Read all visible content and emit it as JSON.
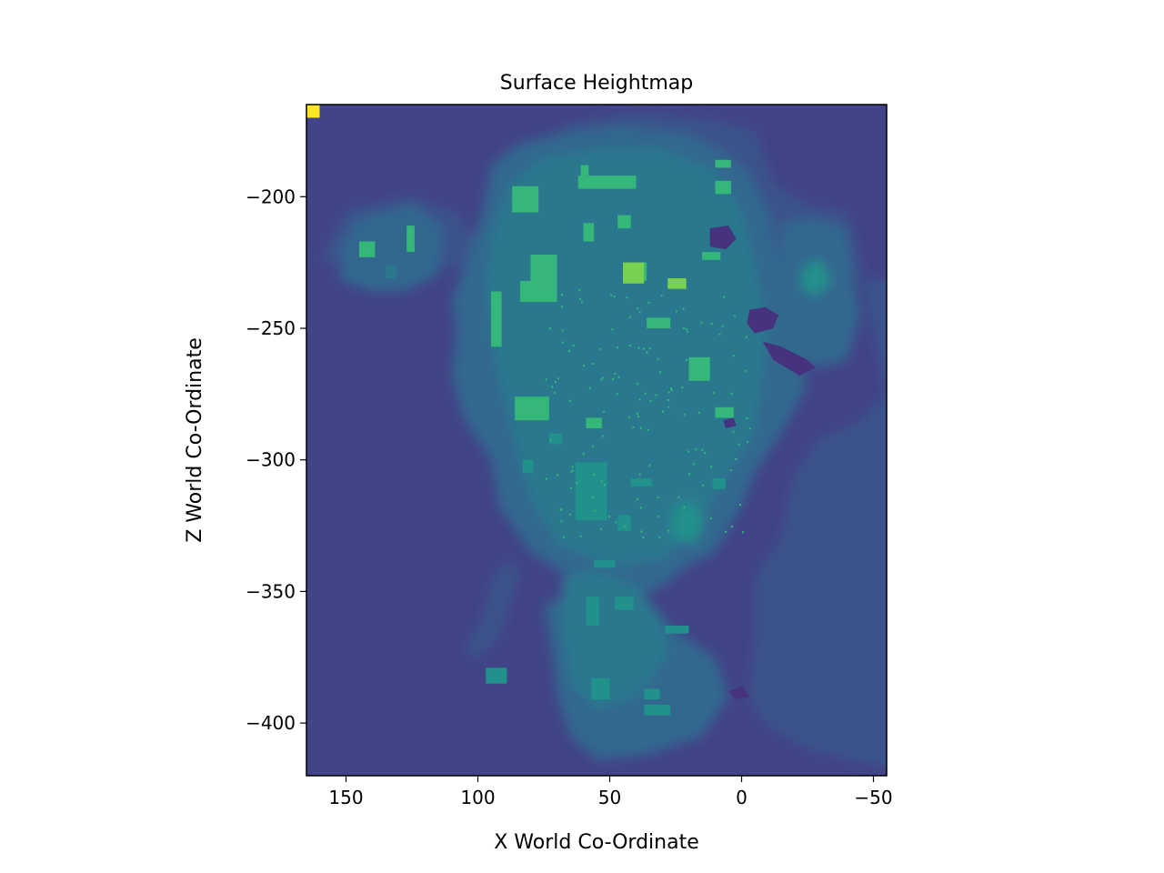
{
  "chart_data": {
    "type": "heatmap",
    "title": "Surface Heightmap",
    "xlabel": "X World Co-Ordinate",
    "ylabel": "Z World Co-Ordinate",
    "xlim": [
      165,
      -55
    ],
    "ylim": [
      -420,
      -165
    ],
    "xticks": [
      {
        "value": 150,
        "label": "150"
      },
      {
        "value": 100,
        "label": "100"
      },
      {
        "value": 50,
        "label": "50"
      },
      {
        "value": 0,
        "label": "0"
      },
      {
        "value": -50,
        "label": "−50"
      }
    ],
    "yticks": [
      {
        "value": -200,
        "label": "−200"
      },
      {
        "value": -250,
        "label": "−250"
      },
      {
        "value": -300,
        "label": "−300"
      },
      {
        "value": -350,
        "label": "−350"
      },
      {
        "value": -400,
        "label": "−400"
      }
    ],
    "colormap": "viridis",
    "colors": {
      "background": "#414487",
      "low": "#46327e",
      "mid_low": "#3b528b",
      "mid": "#31688e",
      "mid_high": "#2a788e",
      "high": "#21918c",
      "higher": "#35b779",
      "peak": "#7ad151",
      "max": "#fde725"
    },
    "regions": [
      {
        "level": "mid_low",
        "points": [
          [
            160,
            -225
          ],
          [
            150,
            -205
          ],
          [
            125,
            -200
          ],
          [
            108,
            -206
          ],
          [
            102,
            -216
          ],
          [
            98,
            -212
          ],
          [
            92,
            -190
          ],
          [
            80,
            -180
          ],
          [
            62,
            -172
          ],
          [
            40,
            -168
          ],
          [
            10,
            -171
          ],
          [
            -5,
            -175
          ],
          [
            -12,
            -195
          ],
          [
            -25,
            -203
          ],
          [
            -40,
            -206
          ],
          [
            -45,
            -226
          ],
          [
            -50,
            -252
          ],
          [
            -55,
            -275
          ],
          [
            -45,
            -285
          ],
          [
            -30,
            -292
          ],
          [
            -20,
            -305
          ],
          [
            -15,
            -330
          ],
          [
            -5,
            -345
          ],
          [
            -5,
            -370
          ],
          [
            -3,
            -390
          ],
          [
            -8,
            -400
          ],
          [
            -25,
            -410
          ],
          [
            -45,
            -415
          ],
          [
            -65,
            -418
          ],
          [
            -85,
            -405
          ],
          [
            -92,
            -390
          ],
          [
            -95,
            -370
          ],
          [
            -92,
            -345
          ],
          [
            -90,
            -330
          ],
          [
            -80,
            -318
          ],
          [
            -67,
            -312
          ],
          [
            -70,
            -295
          ],
          [
            -78,
            -282
          ],
          [
            -85,
            -265
          ],
          [
            -100,
            -248
          ],
          [
            -110,
            -235
          ],
          [
            -120,
            -228
          ],
          [
            -140,
            -233
          ],
          [
            -155,
            -235
          ]
        ]
      },
      {
        "level": "mid_low",
        "points": [
          [
            101,
            -376
          ],
          [
            92,
            -368
          ],
          [
            88,
            -355
          ],
          [
            84,
            -342
          ],
          [
            90,
            -338
          ],
          [
            95,
            -346
          ],
          [
            98,
            -360
          ],
          [
            105,
            -372
          ]
        ]
      },
      {
        "level": "mid",
        "points": [
          [
            145,
            -208
          ],
          [
            125,
            -203
          ],
          [
            113,
            -212
          ],
          [
            115,
            -230
          ],
          [
            128,
            -236
          ],
          [
            140,
            -236
          ],
          [
            152,
            -232
          ],
          [
            152,
            -218
          ]
        ]
      },
      {
        "level": "mid",
        "points": [
          [
            102,
            -216
          ],
          [
            98,
            -205
          ],
          [
            95,
            -188
          ],
          [
            85,
            -180
          ],
          [
            65,
            -175
          ],
          [
            45,
            -173
          ],
          [
            20,
            -176
          ],
          [
            10,
            -181
          ],
          [
            -2,
            -190
          ],
          [
            -10,
            -205
          ],
          [
            -15,
            -225
          ],
          [
            -20,
            -255
          ],
          [
            -25,
            -272
          ],
          [
            -15,
            -290
          ],
          [
            -5,
            -305
          ],
          [
            0,
            -318
          ],
          [
            10,
            -335
          ],
          [
            20,
            -340
          ],
          [
            30,
            -348
          ],
          [
            40,
            -353
          ],
          [
            55,
            -345
          ],
          [
            65,
            -345
          ],
          [
            80,
            -335
          ],
          [
            92,
            -318
          ],
          [
            95,
            -300
          ],
          [
            105,
            -285
          ],
          [
            110,
            -268
          ],
          [
            108,
            -250
          ],
          [
            110,
            -240
          ],
          [
            105,
            -226
          ]
        ]
      },
      {
        "level": "mid",
        "points": [
          [
            75,
            -355
          ],
          [
            60,
            -350
          ],
          [
            40,
            -352
          ],
          [
            25,
            -365
          ],
          [
            10,
            -375
          ],
          [
            5,
            -390
          ],
          [
            15,
            -405
          ],
          [
            35,
            -412
          ],
          [
            55,
            -414
          ],
          [
            65,
            -405
          ],
          [
            70,
            -390
          ],
          [
            72,
            -372
          ]
        ]
      },
      {
        "level": "mid",
        "points": [
          [
            -15,
            -210
          ],
          [
            -28,
            -208
          ],
          [
            -40,
            -212
          ],
          [
            -42,
            -228
          ],
          [
            -45,
            -245
          ],
          [
            -40,
            -262
          ],
          [
            -30,
            -265
          ],
          [
            -20,
            -262
          ],
          [
            -15,
            -245
          ]
        ]
      },
      {
        "level": "mid_high",
        "points": [
          [
            95,
            -215
          ],
          [
            88,
            -195
          ],
          [
            75,
            -185
          ],
          [
            55,
            -182
          ],
          [
            30,
            -182
          ],
          [
            10,
            -190
          ],
          [
            0,
            -205
          ],
          [
            -5,
            -225
          ],
          [
            -10,
            -250
          ],
          [
            -8,
            -270
          ],
          [
            -5,
            -290
          ],
          [
            5,
            -305
          ],
          [
            15,
            -322
          ],
          [
            30,
            -338
          ],
          [
            50,
            -340
          ],
          [
            70,
            -332
          ],
          [
            80,
            -315
          ],
          [
            85,
            -298
          ],
          [
            90,
            -278
          ],
          [
            95,
            -255
          ],
          [
            97,
            -235
          ]
        ]
      },
      {
        "level": "mid_high",
        "points": [
          [
            68,
            -345
          ],
          [
            55,
            -342
          ],
          [
            40,
            -348
          ],
          [
            30,
            -360
          ],
          [
            28,
            -375
          ],
          [
            40,
            -390
          ],
          [
            55,
            -395
          ],
          [
            65,
            -385
          ],
          [
            68,
            -365
          ]
        ]
      },
      {
        "level": "high",
        "points": [
          [
            26,
            -318
          ],
          [
            18,
            -316
          ],
          [
            14,
            -324
          ],
          [
            18,
            -332
          ],
          [
            26,
            -330
          ]
        ]
      },
      {
        "level": "high",
        "points": [
          [
            -24,
            -226
          ],
          [
            -30,
            -224
          ],
          [
            -34,
            -232
          ],
          [
            -28,
            -238
          ],
          [
            -22,
            -234
          ]
        ]
      }
    ],
    "blocks": [
      {
        "level": "higher",
        "x1": 95,
        "x2": 91,
        "z1": -236,
        "z2": -257
      },
      {
        "level": "higher",
        "x1": 80,
        "x2": 70,
        "z1": -222,
        "z2": -233
      },
      {
        "level": "higher",
        "x1": 84,
        "x2": 70,
        "z1": -232,
        "z2": -240
      },
      {
        "level": "higher",
        "x1": 43,
        "x2": 36,
        "z1": -225,
        "z2": -232
      },
      {
        "level": "peak",
        "x1": 45,
        "x2": 37,
        "z1": -225,
        "z2": -233
      },
      {
        "level": "higher",
        "x1": 87,
        "x2": 77,
        "z1": -196,
        "z2": -206
      },
      {
        "level": "higher",
        "x1": 62,
        "x2": 40,
        "z1": -192,
        "z2": -197
      },
      {
        "level": "higher",
        "x1": 61,
        "x2": 58,
        "z1": -188,
        "z2": -192
      },
      {
        "level": "higher",
        "x1": 10,
        "x2": 4,
        "z1": -194,
        "z2": -199
      },
      {
        "level": "higher",
        "x1": 10,
        "x2": 4,
        "z1": -186,
        "z2": -189
      },
      {
        "level": "higher",
        "x1": 47,
        "x2": 42,
        "z1": -207,
        "z2": -212
      },
      {
        "level": "higher",
        "x1": 60,
        "x2": 56,
        "z1": -210,
        "z2": -217
      },
      {
        "level": "higher",
        "x1": 15,
        "x2": 8,
        "z1": -221,
        "z2": -224
      },
      {
        "level": "higher",
        "x1": 28,
        "x2": 21,
        "z1": -231,
        "z2": -235
      },
      {
        "level": "peak",
        "x1": 28,
        "x2": 21,
        "z1": -231,
        "z2": -235
      },
      {
        "level": "higher",
        "x1": 36,
        "x2": 27,
        "z1": -246,
        "z2": -250
      },
      {
        "level": "higher",
        "x1": 20,
        "x2": 12,
        "z1": -261,
        "z2": -270
      },
      {
        "level": "higher",
        "x1": 86,
        "x2": 73,
        "z1": -276,
        "z2": -285
      },
      {
        "level": "higher",
        "x1": 10,
        "x2": 3,
        "z1": -280,
        "z2": -284
      },
      {
        "level": "higher",
        "x1": 59,
        "x2": 53,
        "z1": -284,
        "z2": -288
      },
      {
        "level": "higher",
        "x1": 145,
        "x2": 139,
        "z1": -217,
        "z2": -223
      },
      {
        "level": "higher",
        "x1": 127,
        "x2": 124,
        "z1": -211,
        "z2": -221
      },
      {
        "level": "mid_high",
        "x1": 135,
        "x2": 131,
        "z1": -226,
        "z2": -231
      },
      {
        "level": "high",
        "x1": 63,
        "x2": 51,
        "z1": -301,
        "z2": -323
      },
      {
        "level": "high",
        "x1": 56,
        "x2": 48,
        "z1": -338,
        "z2": -341
      },
      {
        "level": "high",
        "x1": 59,
        "x2": 54,
        "z1": -352,
        "z2": -363
      },
      {
        "level": "high",
        "x1": 48,
        "x2": 41,
        "z1": -352,
        "z2": -357
      },
      {
        "level": "high",
        "x1": 29,
        "x2": 20,
        "z1": -363,
        "z2": -366
      },
      {
        "level": "high",
        "x1": 57,
        "x2": 50,
        "z1": -383,
        "z2": -391
      },
      {
        "level": "high",
        "x1": 37,
        "x2": 31,
        "z1": -387,
        "z2": -391
      },
      {
        "level": "high",
        "x1": 37,
        "x2": 27,
        "z1": -393,
        "z2": -397
      },
      {
        "level": "high",
        "x1": 97,
        "x2": 89,
        "z1": -379,
        "z2": -385
      },
      {
        "level": "high",
        "x1": 83,
        "x2": 79,
        "z1": -300,
        "z2": -305
      },
      {
        "level": "high",
        "x1": 73,
        "x2": 68,
        "z1": -290,
        "z2": -294
      },
      {
        "level": "high",
        "x1": 42,
        "x2": 34,
        "z1": -307,
        "z2": -310
      },
      {
        "level": "high",
        "x1": 47,
        "x2": 42,
        "z1": -321,
        "z2": -327
      },
      {
        "level": "high",
        "x1": 11,
        "x2": 6,
        "z1": -307,
        "z2": -311
      }
    ],
    "pits": [
      {
        "points": [
          [
            12,
            -212
          ],
          [
            5,
            -211
          ],
          [
            2,
            -216
          ],
          [
            6,
            -220
          ],
          [
            12,
            -219
          ]
        ]
      },
      {
        "points": [
          [
            -3,
            -243
          ],
          [
            -9,
            -242
          ],
          [
            -14,
            -245
          ],
          [
            -12,
            -250
          ],
          [
            -5,
            -252
          ],
          [
            -2,
            -248
          ]
        ]
      },
      {
        "points": [
          [
            -8,
            -255
          ],
          [
            -15,
            -257
          ],
          [
            -25,
            -262
          ],
          [
            -28,
            -265
          ],
          [
            -22,
            -268
          ],
          [
            -12,
            -262
          ]
        ]
      },
      {
        "points": [
          [
            7,
            -285
          ],
          [
            3,
            -284
          ],
          [
            2,
            -287
          ],
          [
            6,
            -288
          ]
        ]
      },
      {
        "points": [
          [
            5,
            -388
          ],
          [
            0,
            -386
          ],
          [
            -3,
            -390
          ],
          [
            2,
            -391
          ]
        ]
      }
    ],
    "corner": {
      "x1": 165,
      "x2": 160,
      "z1": -165,
      "z2": -170
    }
  }
}
